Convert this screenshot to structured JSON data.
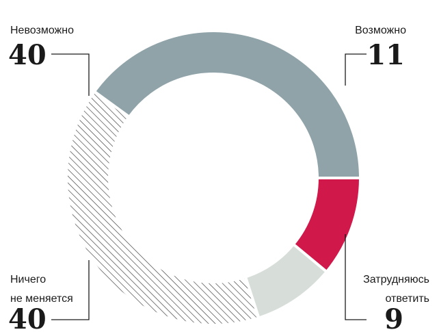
{
  "chart_data": {
    "type": "pie",
    "variant": "donut",
    "unit": "%",
    "slices": [
      {
        "key": "possible",
        "label": "Возможно",
        "label_lines": [
          "Возможно"
        ],
        "value": 11,
        "value_text": "11",
        "color": "#d0184a",
        "fill": "solid"
      },
      {
        "key": "hard",
        "label": "Затрудняюсь ответить",
        "label_lines": [
          "Затрудняюсь",
          "ответить"
        ],
        "value": 9,
        "value_text": "9",
        "color": "#d7ddd8",
        "fill": "solid"
      },
      {
        "key": "nothing",
        "label": "Ничего не меняется",
        "label_lines": [
          "Ничего",
          "не меняется"
        ],
        "value": 40,
        "value_text": "40",
        "color": "#3a3a3a",
        "fill": "hatched"
      },
      {
        "key": "impossible",
        "label": "Невозможно",
        "label_lines": [
          "Невозможно"
        ],
        "value": 40,
        "value_text": "40",
        "color": "#8fa3a9",
        "fill": "solid"
      }
    ]
  }
}
